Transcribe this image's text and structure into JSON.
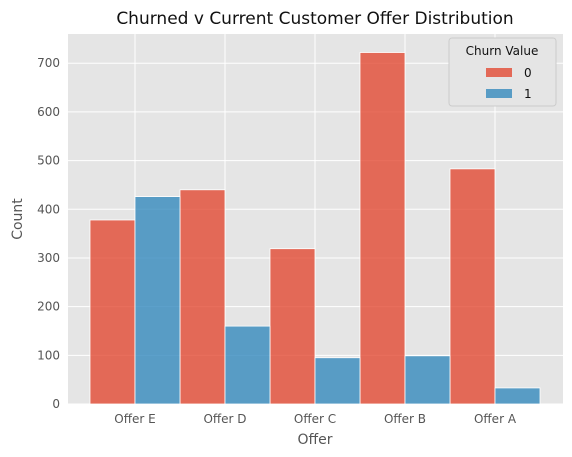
{
  "chart_data": {
    "type": "bar",
    "title": "Churned v Current Customer Offer Distribution",
    "xlabel": "Offer",
    "ylabel": "Count",
    "categories": [
      "Offer E",
      "Offer D",
      "Offer C",
      "Offer B",
      "Offer A"
    ],
    "ylim": [
      0,
      760
    ],
    "yticks": [
      0,
      100,
      200,
      300,
      400,
      500,
      600,
      700
    ],
    "grid": true,
    "legend": {
      "title": "Churn Value",
      "position": "top-right"
    },
    "series": [
      {
        "name": "0",
        "color": "#E24A33",
        "values": [
          378,
          440,
          319,
          722,
          483
        ]
      },
      {
        "name": "1",
        "color": "#348ABD",
        "values": [
          426,
          160,
          95,
          99,
          33
        ]
      }
    ]
  }
}
